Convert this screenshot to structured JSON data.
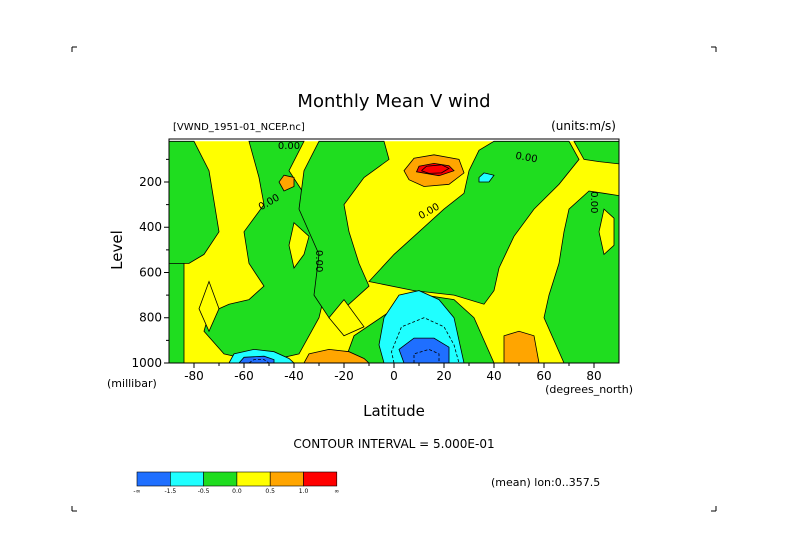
{
  "chart_data": {
    "type": "heatmap",
    "title": "Monthly Mean V wind",
    "dataset_label": "[VWND_1951-01_NCEP.nc]",
    "units_label": "(units:m/s)",
    "xlabel": "Latitude",
    "ylabel": "Level",
    "x_unit_label": "(degrees_north)",
    "y_unit_label": "(millibar)",
    "xlim": [
      -90,
      90
    ],
    "ylim": [
      1000,
      10
    ],
    "x_ticks": [
      -80,
      -60,
      -40,
      -20,
      0,
      20,
      40,
      60,
      80
    ],
    "x_tick_labels": [
      "-80",
      "-60",
      "-40",
      "-20",
      "0",
      "20",
      "40",
      "60",
      "80"
    ],
    "y_ticks": [
      200,
      400,
      600,
      800,
      1000
    ],
    "y_tick_labels": [
      "200",
      "400",
      "600",
      "800",
      "1000"
    ],
    "contour_interval_label": "CONTOUR INTERVAL = 5.000E-01",
    "mean_label": "(mean) lon:0..357.5",
    "contour_labels": [
      {
        "text": "0.00",
        "x": -50,
        "y": 290,
        "rotate": -30
      },
      {
        "text": "0.00",
        "x": -30,
        "y": 550,
        "rotate": 90
      },
      {
        "text": "0.00",
        "x": 14,
        "y": 330,
        "rotate": -30
      },
      {
        "text": "0.00",
        "x": 53,
        "y": 92,
        "rotate": 10
      },
      {
        "text": "0.00",
        "x": 80,
        "y": 290,
        "rotate": 90
      },
      {
        "text": "0.00",
        "x": -42,
        "y": 40,
        "rotate": 0
      }
    ],
    "legend": {
      "colors": [
        "#1f6fff",
        "#1fffff",
        "#1fdd1f",
        "#ffff00",
        "#ffa500",
        "#ff0000"
      ],
      "labels": [
        "-∞",
        "-1.5",
        "-0.5",
        "0.0",
        "0.5",
        "1.0",
        "∞"
      ]
    },
    "regions": [
      {
        "level": 1,
        "pts": [
          [
            -90,
            20
          ],
          [
            90,
            20
          ],
          [
            90,
            1000
          ],
          [
            -90,
            1000
          ]
        ]
      },
      {
        "level": 0,
        "pts": [
          [
            -90,
            20
          ],
          [
            -80,
            20
          ],
          [
            -74,
            150
          ],
          [
            -70,
            420
          ],
          [
            -76,
            520
          ],
          [
            -82,
            560
          ],
          [
            -90,
            560
          ]
        ]
      },
      {
        "level": 0,
        "pts": [
          [
            -90,
            560
          ],
          [
            -84,
            560
          ],
          [
            -84,
            1000
          ],
          [
            -90,
            1000
          ]
        ]
      },
      {
        "level": 0,
        "pts": [
          [
            -58,
            20
          ],
          [
            -36,
            20
          ],
          [
            -42,
            150
          ],
          [
            -32,
            320
          ],
          [
            -24,
            520
          ],
          [
            -30,
            800
          ],
          [
            -38,
            960
          ],
          [
            -50,
            990
          ],
          [
            -60,
            980
          ],
          [
            -68,
            960
          ],
          [
            -76,
            860
          ],
          [
            -74,
            780
          ],
          [
            -66,
            740
          ],
          [
            -58,
            720
          ],
          [
            -52,
            660
          ],
          [
            -58,
            560
          ],
          [
            -60,
            420
          ],
          [
            -52,
            300
          ],
          [
            -54,
            180
          ]
        ]
      },
      {
        "level": 0,
        "pts": [
          [
            -30,
            20
          ],
          [
            -4,
            20
          ],
          [
            -2,
            100
          ],
          [
            -12,
            180
          ],
          [
            -20,
            300
          ],
          [
            -18,
            420
          ],
          [
            -14,
            560
          ],
          [
            -10,
            660
          ],
          [
            -18,
            740
          ],
          [
            -26,
            800
          ],
          [
            -32,
            700
          ],
          [
            -30,
            520
          ],
          [
            -38,
            320
          ],
          [
            -36,
            150
          ]
        ]
      },
      {
        "level": 0,
        "pts": [
          [
            -20,
            1000
          ],
          [
            -16,
            880
          ],
          [
            0,
            760
          ],
          [
            12,
            700
          ],
          [
            24,
            720
          ],
          [
            32,
            800
          ],
          [
            36,
            900
          ],
          [
            40,
            1000
          ]
        ]
      },
      {
        "level": 0,
        "pts": [
          [
            -10,
            640
          ],
          [
            0,
            520
          ],
          [
            10,
            420
          ],
          [
            20,
            320
          ],
          [
            28,
            250
          ],
          [
            30,
            150
          ],
          [
            34,
            60
          ],
          [
            40,
            20
          ],
          [
            70,
            20
          ],
          [
            74,
            100
          ],
          [
            66,
            210
          ],
          [
            56,
            320
          ],
          [
            48,
            440
          ],
          [
            42,
            580
          ],
          [
            40,
            680
          ],
          [
            36,
            740
          ],
          [
            24,
            700
          ],
          [
            8,
            680
          ]
        ]
      },
      {
        "level": 0,
        "pts": [
          [
            72,
            20
          ],
          [
            90,
            20
          ],
          [
            90,
            120
          ],
          [
            82,
            110
          ],
          [
            76,
            100
          ]
        ]
      },
      {
        "level": 0,
        "pts": [
          [
            90,
            260
          ],
          [
            84,
            250
          ],
          [
            78,
            240
          ],
          [
            70,
            320
          ],
          [
            68,
            420
          ],
          [
            66,
            560
          ],
          [
            62,
            700
          ],
          [
            60,
            800
          ],
          [
            64,
            900
          ],
          [
            68,
            1000
          ],
          [
            90,
            1000
          ]
        ]
      },
      {
        "level": 1,
        "pts": [
          [
            -74,
            640
          ],
          [
            -70,
            760
          ],
          [
            -74,
            860
          ],
          [
            -78,
            760
          ]
        ]
      },
      {
        "level": 1,
        "pts": [
          [
            -40,
            380
          ],
          [
            -42,
            480
          ],
          [
            -40,
            580
          ],
          [
            -36,
            520
          ],
          [
            -34,
            440
          ]
        ]
      },
      {
        "level": 1,
        "pts": [
          [
            -20,
            720
          ],
          [
            -26,
            800
          ],
          [
            -20,
            880
          ],
          [
            -12,
            840
          ]
        ]
      },
      {
        "level": 1,
        "pts": [
          [
            84,
            320
          ],
          [
            82,
            420
          ],
          [
            84,
            520
          ],
          [
            88,
            480
          ],
          [
            88,
            360
          ]
        ]
      },
      {
        "level": -1,
        "pts": [
          [
            -4,
            1000
          ],
          [
            -6,
            920
          ],
          [
            -4,
            800
          ],
          [
            2,
            700
          ],
          [
            10,
            680
          ],
          [
            18,
            720
          ],
          [
            24,
            800
          ],
          [
            26,
            900
          ],
          [
            28,
            1000
          ]
        ]
      },
      {
        "level": -1,
        "pts": [
          [
            -66,
            1000
          ],
          [
            -64,
            960
          ],
          [
            -56,
            940
          ],
          [
            -48,
            950
          ],
          [
            -42,
            980
          ],
          [
            -40,
            1000
          ]
        ]
      },
      {
        "level": -1,
        "pts": [
          [
            34,
            180
          ],
          [
            36,
            160
          ],
          [
            40,
            170
          ],
          [
            38,
            200
          ],
          [
            34,
            200
          ]
        ]
      },
      {
        "level": -2,
        "pts": [
          [
            4,
            1000
          ],
          [
            2,
            940
          ],
          [
            8,
            890
          ],
          [
            16,
            890
          ],
          [
            22,
            930
          ],
          [
            22,
            1000
          ]
        ]
      },
      {
        "level": -2,
        "pts": [
          [
            -62,
            1000
          ],
          [
            -60,
            975
          ],
          [
            -52,
            970
          ],
          [
            -48,
            985
          ],
          [
            -48,
            1000
          ]
        ]
      },
      {
        "level": 2,
        "pts": [
          [
            6,
            190
          ],
          [
            4,
            150
          ],
          [
            8,
            95
          ],
          [
            16,
            80
          ],
          [
            26,
            100
          ],
          [
            28,
            160
          ],
          [
            22,
            210
          ],
          [
            12,
            220
          ]
        ]
      },
      {
        "level": 2,
        "pts": [
          [
            -44,
            170
          ],
          [
            -46,
            200
          ],
          [
            -44,
            240
          ],
          [
            -40,
            220
          ],
          [
            -40,
            180
          ]
        ]
      },
      {
        "level": 2,
        "pts": [
          [
            -36,
            1000
          ],
          [
            -34,
            960
          ],
          [
            -26,
            940
          ],
          [
            -18,
            950
          ],
          [
            -12,
            980
          ],
          [
            -10,
            1000
          ]
        ]
      },
      {
        "level": 2,
        "pts": [
          [
            44,
            1000
          ],
          [
            44,
            880
          ],
          [
            50,
            860
          ],
          [
            56,
            880
          ],
          [
            58,
            1000
          ]
        ]
      },
      {
        "level": 3,
        "pts": [
          [
            9,
            155
          ],
          [
            10,
            130
          ],
          [
            16,
            118
          ],
          [
            22,
            128
          ],
          [
            24,
            150
          ],
          [
            18,
            172
          ]
        ]
      }
    ],
    "contour_lines": [
      {
        "dashed": true,
        "pts": [
          [
            0,
            1000
          ],
          [
            -1,
            950
          ],
          [
            3,
            840
          ],
          [
            12,
            800
          ],
          [
            20,
            840
          ],
          [
            24,
            920
          ],
          [
            26,
            1000
          ]
        ]
      },
      {
        "dashed": true,
        "pts": [
          [
            8,
            1000
          ],
          [
            8,
            960
          ],
          [
            14,
            940
          ],
          [
            18,
            960
          ],
          [
            18,
            1000
          ]
        ]
      },
      {
        "dashed": true,
        "pts": [
          [
            -58,
            1000
          ],
          [
            -56,
            985
          ],
          [
            -52,
            985
          ],
          [
            -50,
            1000
          ]
        ]
      },
      {
        "dashed": false,
        "pts": [
          [
            11,
            150
          ],
          [
            13,
            130
          ],
          [
            19,
            124
          ],
          [
            22,
            140
          ],
          [
            19,
            160
          ],
          [
            14,
            162
          ],
          [
            11,
            150
          ]
        ]
      }
    ]
  }
}
